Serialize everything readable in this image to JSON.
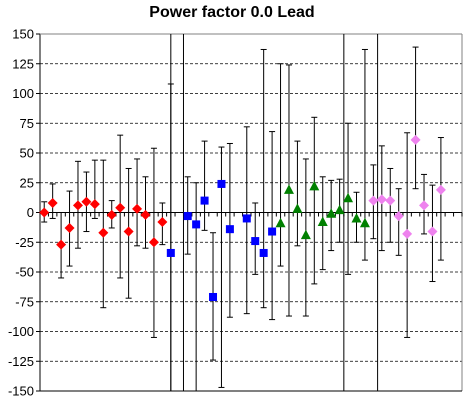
{
  "chart_data": {
    "type": "scatter",
    "title": "Power factor 0.0 Lead",
    "xlabel": "",
    "ylabel": "",
    "ylim": [
      -150,
      150
    ],
    "yticks": [
      150,
      125,
      100,
      75,
      50,
      25,
      0,
      -25,
      -50,
      -75,
      -100,
      -125,
      -150
    ],
    "grid": "horizontal dashed",
    "legend": "none",
    "x_count": 50,
    "dividers_after_index": [
      15,
      17,
      36,
      40
    ],
    "series": [
      {
        "color": "#ff0000",
        "marker": "diamond",
        "points": [
          {
            "x": 1,
            "y": 0,
            "lo": -8,
            "hi": 9
          },
          {
            "x": 2,
            "y": 8,
            "lo": -5,
            "hi": 24
          },
          {
            "x": 3,
            "y": -27,
            "lo": -55,
            "hi": 0
          },
          {
            "x": 4,
            "y": -13,
            "lo": -45,
            "hi": 18
          },
          {
            "x": 5,
            "y": 6,
            "lo": -30,
            "hi": 43
          },
          {
            "x": 6,
            "y": 9,
            "lo": -16,
            "hi": 34
          },
          {
            "x": 7,
            "y": 7,
            "lo": -5,
            "hi": 44
          },
          {
            "x": 8,
            "y": -17,
            "lo": -80,
            "hi": 44
          },
          {
            "x": 9,
            "y": -2,
            "lo": -13,
            "hi": 10
          },
          {
            "x": 10,
            "y": 4,
            "lo": -55,
            "hi": 65
          },
          {
            "x": 11,
            "y": -16,
            "lo": -72,
            "hi": 37
          },
          {
            "x": 12,
            "y": 3,
            "lo": -28,
            "hi": 45
          },
          {
            "x": 13,
            "y": -2,
            "lo": -30,
            "hi": 30
          },
          {
            "x": 14,
            "y": -25,
            "lo": -105,
            "hi": 54
          },
          {
            "x": 15,
            "y": -8,
            "lo": -27,
            "hi": 8
          }
        ]
      },
      {
        "color": "#0000ff",
        "marker": "square",
        "points": [
          {
            "x": 16,
            "y": -34,
            "lo": -150,
            "hi": 108
          },
          {
            "x": 18,
            "y": -3,
            "lo": -35,
            "hi": 30
          },
          {
            "x": 19,
            "y": -10,
            "lo": -150,
            "hi": 25
          },
          {
            "x": 20,
            "y": 10,
            "lo": -15,
            "hi": 60
          },
          {
            "x": 21,
            "y": -71,
            "lo": -124,
            "hi": -17
          },
          {
            "x": 22,
            "y": 24,
            "lo": -147,
            "hi": 55
          },
          {
            "x": 23,
            "y": -14,
            "lo": -88,
            "hi": 58
          },
          {
            "x": 25,
            "y": -5,
            "lo": -85,
            "hi": 72
          },
          {
            "x": 26,
            "y": -24,
            "lo": -52,
            "hi": 8
          },
          {
            "x": 27,
            "y": -34,
            "lo": -80,
            "hi": 137
          },
          {
            "x": 28,
            "y": -16,
            "lo": -90,
            "hi": 68
          }
        ]
      },
      {
        "color": "#008000",
        "marker": "triangle",
        "points": [
          {
            "x": 29,
            "y": -9,
            "lo": -45,
            "hi": 125
          },
          {
            "x": 30,
            "y": 19,
            "lo": -87,
            "hi": 124
          },
          {
            "x": 31,
            "y": 3,
            "lo": -28,
            "hi": 60
          },
          {
            "x": 32,
            "y": -19,
            "lo": -87,
            "hi": 45
          },
          {
            "x": 33,
            "y": 22,
            "lo": -60,
            "hi": 80
          },
          {
            "x": 34,
            "y": -8,
            "lo": -48,
            "hi": 30
          },
          {
            "x": 35,
            "y": -1,
            "lo": -32,
            "hi": 27
          },
          {
            "x": 36,
            "y": 2,
            "lo": -25,
            "hi": 28
          },
          {
            "x": 37,
            "y": 12,
            "lo": -52,
            "hi": 75
          },
          {
            "x": 38,
            "y": -5,
            "lo": -25,
            "hi": 17
          },
          {
            "x": 39,
            "y": -9,
            "lo": -40,
            "hi": 137
          }
        ]
      },
      {
        "color": "#ee82ee",
        "marker": "diamond",
        "points": [
          {
            "x": 40,
            "y": 10,
            "lo": -22,
            "hi": 40
          },
          {
            "x": 41,
            "y": 11,
            "lo": -32,
            "hi": 56
          },
          {
            "x": 42,
            "y": 10,
            "lo": -25,
            "hi": 37
          },
          {
            "x": 43,
            "y": -3,
            "lo": -36,
            "hi": 20
          },
          {
            "x": 44,
            "y": -18,
            "lo": -105,
            "hi": 67
          },
          {
            "x": 45,
            "y": 61,
            "lo": 20,
            "hi": 139
          },
          {
            "x": 46,
            "y": 6,
            "lo": -18,
            "hi": 32
          },
          {
            "x": 47,
            "y": -16,
            "lo": -58,
            "hi": 23
          },
          {
            "x": 48,
            "y": 19,
            "lo": -40,
            "hi": 63
          }
        ]
      }
    ]
  }
}
